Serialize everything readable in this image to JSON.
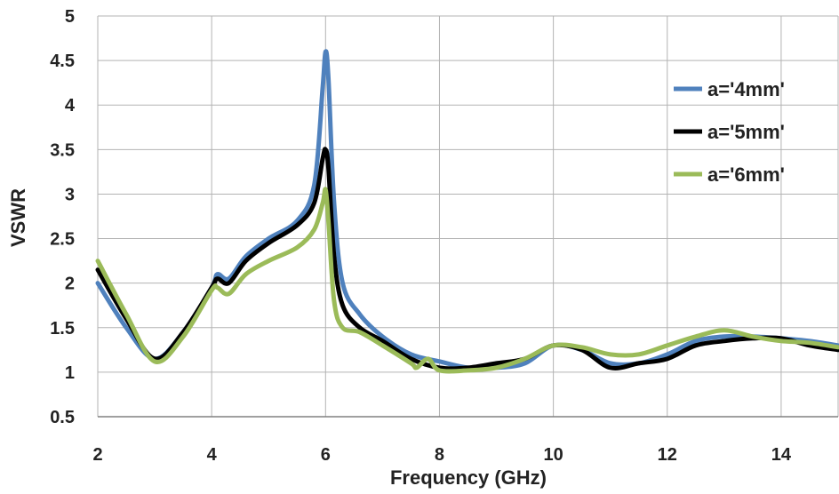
{
  "chart_data": {
    "type": "line",
    "title": "",
    "xlabel": "Frequency (GHz)",
    "ylabel": "VSWR",
    "xlim": [
      2,
      15
    ],
    "ylim": [
      0.5,
      5
    ],
    "xticks": [
      2,
      4,
      6,
      8,
      10,
      12,
      14
    ],
    "yticks": [
      0.5,
      1,
      1.5,
      2,
      2.5,
      3,
      3.5,
      4,
      4.5,
      5
    ],
    "ytick_labels": [
      "0.5",
      "1",
      "1.5",
      "2",
      "2.5",
      "3",
      "3.5",
      "4",
      "4.5",
      "5"
    ],
    "grid": true,
    "legend_position": "right",
    "series": [
      {
        "name": "a='4mm'",
        "color": "#4F81BD",
        "x": [
          2,
          2.5,
          3,
          3.5,
          4,
          4.1,
          4.3,
          4.6,
          5,
          5.5,
          5.8,
          5.95,
          6.0,
          6.05,
          6.15,
          6.3,
          6.6,
          7,
          7.5,
          8,
          8.5,
          9,
          9.5,
          10,
          10.5,
          11,
          11.5,
          12,
          12.5,
          13,
          13.5,
          14,
          14.5,
          15
        ],
        "y": [
          2.0,
          1.5,
          1.15,
          1.45,
          1.95,
          2.1,
          2.05,
          2.3,
          2.5,
          2.7,
          3.1,
          4.2,
          4.6,
          4.3,
          2.9,
          2.0,
          1.65,
          1.4,
          1.2,
          1.12,
          1.05,
          1.05,
          1.1,
          1.3,
          1.25,
          1.1,
          1.1,
          1.2,
          1.35,
          1.4,
          1.4,
          1.38,
          1.35,
          1.3
        ]
      },
      {
        "name": "a='5mm'",
        "color": "#000000",
        "x": [
          2,
          2.5,
          3,
          3.5,
          4,
          4.1,
          4.3,
          4.6,
          5,
          5.5,
          5.8,
          5.95,
          6.0,
          6.05,
          6.15,
          6.3,
          6.6,
          7,
          7.5,
          8,
          8.5,
          9,
          9.5,
          10,
          10.5,
          11,
          11.5,
          12,
          12.5,
          13,
          13.5,
          14,
          14.5,
          15
        ],
        "y": [
          2.15,
          1.6,
          1.15,
          1.45,
          1.95,
          2.05,
          2.0,
          2.25,
          2.45,
          2.65,
          2.9,
          3.4,
          3.5,
          3.3,
          2.3,
          1.75,
          1.5,
          1.35,
          1.15,
          1.05,
          1.05,
          1.1,
          1.15,
          1.3,
          1.25,
          1.05,
          1.1,
          1.15,
          1.3,
          1.35,
          1.38,
          1.38,
          1.3,
          1.25
        ]
      },
      {
        "name": "a='6mm'",
        "color": "#9BBB59",
        "x": [
          2,
          2.5,
          3,
          3.5,
          4,
          4.1,
          4.3,
          4.6,
          5,
          5.5,
          5.8,
          5.95,
          6.0,
          6.05,
          6.15,
          6.3,
          6.6,
          7,
          7.5,
          7.6,
          7.8,
          8,
          8.5,
          9,
          9.5,
          10,
          10.5,
          11,
          11.5,
          12,
          12.5,
          13,
          13.5,
          14,
          14.5,
          15
        ],
        "y": [
          2.25,
          1.65,
          1.12,
          1.4,
          1.92,
          1.95,
          1.88,
          2.1,
          2.25,
          2.4,
          2.6,
          2.9,
          3.05,
          2.7,
          1.8,
          1.5,
          1.45,
          1.3,
          1.1,
          1.05,
          1.15,
          1.02,
          1.02,
          1.05,
          1.15,
          1.3,
          1.28,
          1.2,
          1.2,
          1.3,
          1.4,
          1.47,
          1.4,
          1.35,
          1.33,
          1.28
        ]
      }
    ]
  }
}
